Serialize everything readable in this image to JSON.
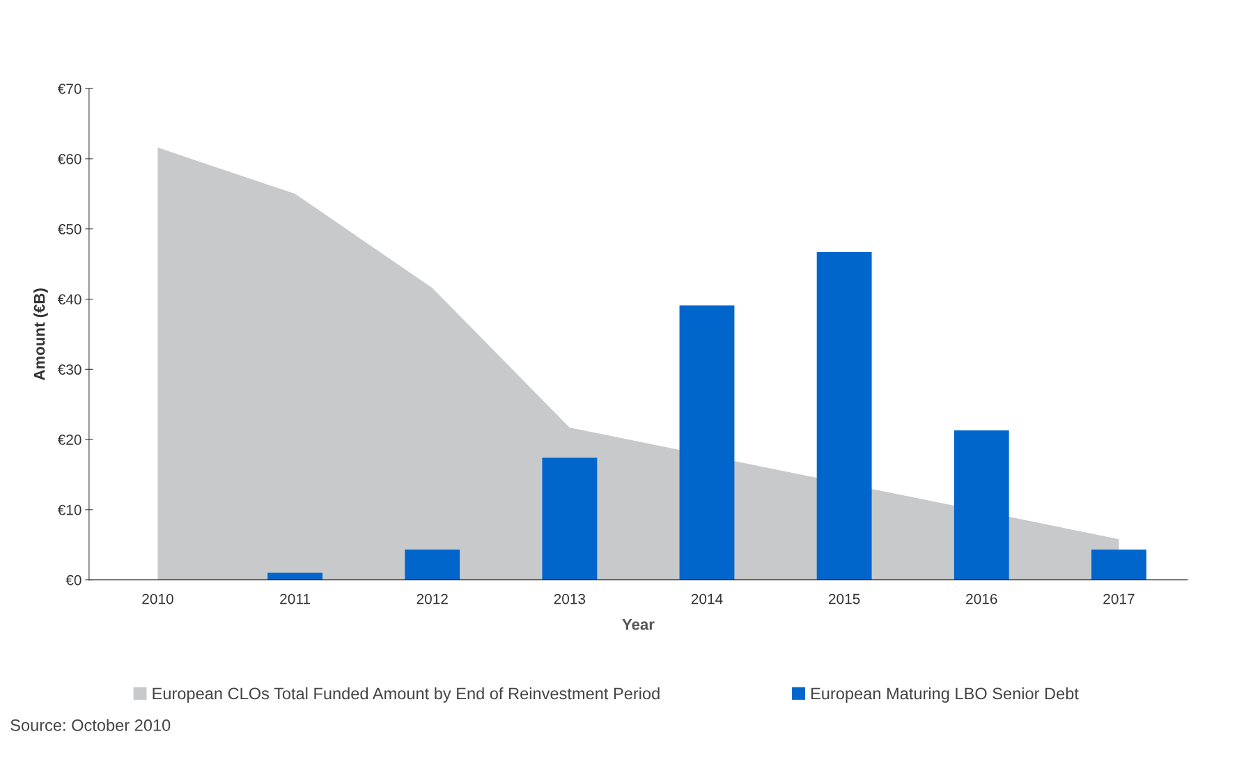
{
  "chart_data": {
    "type": "bar",
    "xlabel": "Year",
    "ylabel": "Amount (€B)",
    "categories": [
      "2010",
      "2011",
      "2012",
      "2013",
      "2014",
      "2015",
      "2016",
      "2017"
    ],
    "series": [
      {
        "name": "European CLOs Total Funded Amount by End of Reinvestment Period",
        "type": "area",
        "color": "#c8c9cb",
        "values": [
          61.6,
          55.0,
          41.6,
          21.7,
          null,
          null,
          null,
          5.8
        ]
      },
      {
        "name": "European Maturing LBO Senior Debt",
        "color": "#0066cc",
        "values": [
          0,
          1.0,
          4.3,
          17.4,
          39.1,
          46.7,
          21.3,
          4.3
        ]
      }
    ],
    "ylim": [
      0,
      70
    ],
    "yticks": [
      {
        "value": 0,
        "label": "€0"
      },
      {
        "value": 10,
        "label": "€10"
      },
      {
        "value": 20,
        "label": "€20"
      },
      {
        "value": 30,
        "label": "€30"
      },
      {
        "value": 40,
        "label": "€40"
      },
      {
        "value": 50,
        "label": "€50"
      },
      {
        "value": 60,
        "label": "€60"
      },
      {
        "value": 70,
        "label": "€70"
      }
    ],
    "grid": false,
    "legend": "bottom",
    "annotations": [
      "Source: October 2010"
    ]
  }
}
